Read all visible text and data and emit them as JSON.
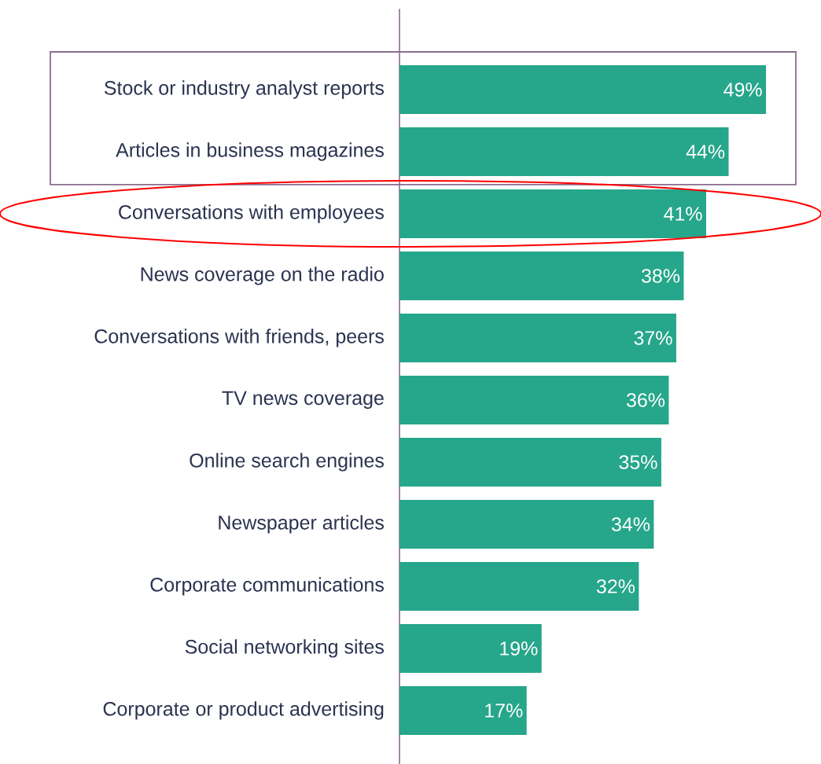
{
  "chart_data": {
    "type": "bar",
    "orientation": "horizontal",
    "color": "#26a68a",
    "categories": [
      "Stock or industry analyst reports",
      "Articles in business magazines",
      "Conversations with employees",
      "News coverage on the radio",
      "Conversations with friends, peers",
      "TV news coverage",
      "Online search engines",
      "Newspaper articles",
      "Corporate communications",
      "Social networking sites",
      "Corporate or product advertising"
    ],
    "values": [
      49,
      44,
      41,
      38,
      37,
      36,
      35,
      34,
      32,
      19,
      17
    ],
    "value_labels": [
      "49%",
      "44%",
      "41%",
      "38%",
      "37%",
      "36%",
      "35%",
      "34%",
      "32%",
      "19%",
      "17%"
    ]
  }
}
